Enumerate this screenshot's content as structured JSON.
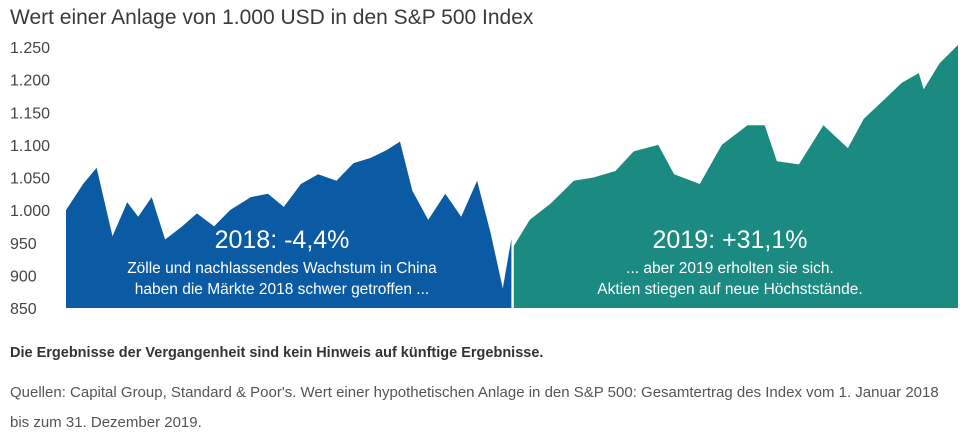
{
  "title": "Wert einer Anlage von 1.000 USD in den S&P 500 Index",
  "colors": {
    "y2018": "#0a5aa4",
    "y2019": "#1b8a80",
    "text": "#333333"
  },
  "chart_data": {
    "type": "area",
    "title": "Wert einer Anlage von 1.000 USD in den S&P 500 Index",
    "ylim": [
      850,
      1250
    ],
    "yticks": [
      {
        "value": 1250,
        "label": "1.250"
      },
      {
        "value": 1200,
        "label": "1.200"
      },
      {
        "value": 1150,
        "label": "1.150"
      },
      {
        "value": 1100,
        "label": "1.100"
      },
      {
        "value": 1050,
        "label": "1.050"
      },
      {
        "value": 1000,
        "label": "1.000"
      },
      {
        "value": 950,
        "label": "950"
      },
      {
        "value": 900,
        "label": "900"
      },
      {
        "value": 850,
        "label": "850"
      }
    ],
    "grid": false,
    "series": [
      {
        "period": "2018",
        "x": [
          "2018-01-01",
          "2018-01-15",
          "2018-01-26",
          "2018-02-08",
          "2018-02-20",
          "2018-03-01",
          "2018-03-12",
          "2018-03-23",
          "2018-04-06",
          "2018-04-18",
          "2018-05-02",
          "2018-05-15",
          "2018-06-01",
          "2018-06-15",
          "2018-06-28",
          "2018-07-12",
          "2018-07-26",
          "2018-08-10",
          "2018-08-24",
          "2018-09-07",
          "2018-09-20",
          "2018-10-01",
          "2018-10-11",
          "2018-10-24",
          "2018-11-07",
          "2018-11-20",
          "2018-12-03",
          "2018-12-14",
          "2018-12-24",
          "2018-12-31"
        ],
        "values": [
          1000,
          1040,
          1065,
          960,
          1012,
          990,
          1020,
          955,
          975,
          995,
          975,
          1000,
          1020,
          1025,
          1005,
          1040,
          1055,
          1045,
          1072,
          1080,
          1092,
          1105,
          1030,
          985,
          1025,
          990,
          1045,
          965,
          880,
          956
        ]
      },
      {
        "period": "2019",
        "x": [
          "2019-01-02",
          "2019-01-15",
          "2019-02-01",
          "2019-02-20",
          "2019-03-08",
          "2019-03-26",
          "2019-04-10",
          "2019-04-30",
          "2019-05-13",
          "2019-06-03",
          "2019-06-21",
          "2019-07-12",
          "2019-07-26",
          "2019-08-05",
          "2019-08-23",
          "2019-09-12",
          "2019-10-02",
          "2019-10-15",
          "2019-11-01",
          "2019-11-15",
          "2019-11-29",
          "2019-12-03",
          "2019-12-16",
          "2019-12-31"
        ],
        "values": [
          945,
          985,
          1010,
          1045,
          1050,
          1060,
          1090,
          1100,
          1055,
          1040,
          1100,
          1130,
          1130,
          1075,
          1070,
          1130,
          1095,
          1140,
          1170,
          1195,
          1210,
          1185,
          1225,
          1253
        ]
      }
    ],
    "annotations": [
      {
        "period": "2018",
        "headline": "2018: -4,4%",
        "lines": [
          "Zölle und nachlassendes Wachstum in China",
          "haben die Märkte 2018 schwer getroffen ..."
        ]
      },
      {
        "period": "2019",
        "headline": "2019: +31,1%",
        "lines": [
          "... aber 2019 erholten sie sich.",
          "Aktien stiegen auf neue Höchststände."
        ]
      }
    ]
  },
  "footer": {
    "disclaimer": "Die Ergebnisse der Vergangenheit sind kein Hinweis auf künftige Ergebnisse.",
    "sources": "Quellen: Capital Group, Standard & Poor's. Wert einer hypothetischen Anlage in den S&P 500: Gesamtertrag des Index vom 1. Januar 2018 bis zum 31. Dezember 2019."
  }
}
